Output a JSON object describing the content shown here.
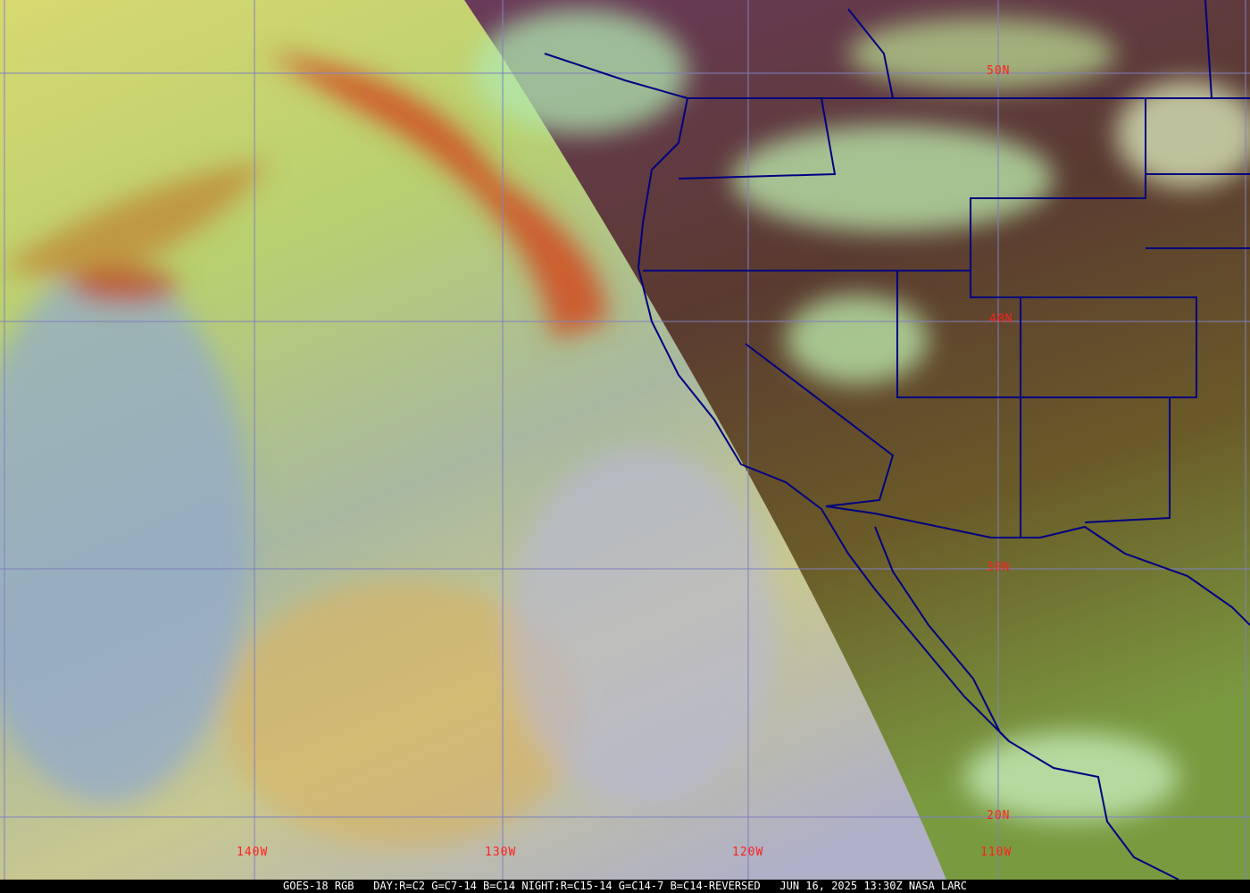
{
  "map": {
    "latitude_labels": [
      "50N",
      "40N",
      "30N",
      "20N"
    ],
    "longitude_labels": [
      "140W",
      "130W",
      "120W",
      "110W"
    ],
    "colors": {
      "grid": "#8080c0",
      "borders": "#000080",
      "labels": "#ff2020"
    }
  },
  "caption": {
    "satellite": "GOES-18 RGB",
    "day_recipe": "DAY:R=C2 G=C7-14 B=C14",
    "night_recipe": "NIGHT:R=C15-14 G=C14-7 B=C14-REVERSED",
    "datetime": "JUN 16, 2025 13:30Z",
    "source": "NASA LARC"
  }
}
